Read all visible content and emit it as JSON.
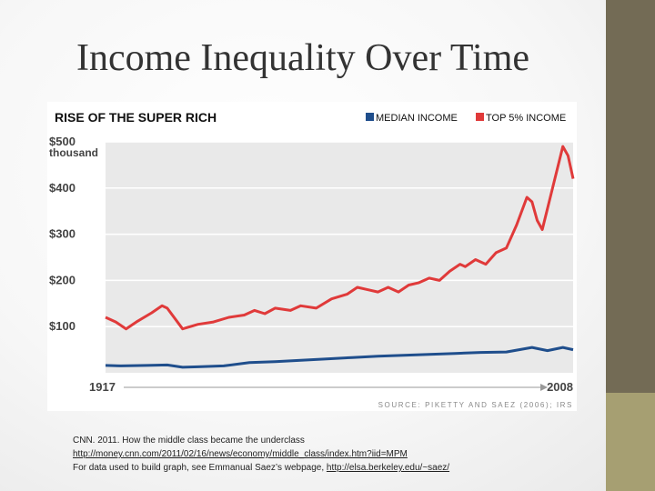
{
  "slide": {
    "title": "Income Inequality Over Time"
  },
  "chart_data": {
    "type": "line",
    "title": "RISE OF THE SUPER RICH",
    "y_unit_label": "thousand",
    "ylim": [
      0,
      500
    ],
    "y_ticks": [
      {
        "value": 500,
        "label": "$500"
      },
      {
        "value": 400,
        "label": "$400"
      },
      {
        "value": 300,
        "label": "$300"
      },
      {
        "value": 200,
        "label": "$200"
      },
      {
        "value": 100,
        "label": "$100"
      }
    ],
    "xlim": [
      1917,
      2008
    ],
    "x_labels": {
      "start": "1917",
      "end": "2008"
    },
    "legend_position": "top-right",
    "source": "SOURCE: PIKETTY AND SAEZ (2006); IRS",
    "grid": true,
    "series": [
      {
        "name": "MEDIAN INCOME",
        "color": "#1f4e8c",
        "x": [
          1917,
          1920,
          1925,
          1929,
          1932,
          1935,
          1940,
          1945,
          1950,
          1955,
          1960,
          1965,
          1970,
          1975,
          1980,
          1985,
          1990,
          1995,
          2000,
          2003,
          2006,
          2008
        ],
        "y": [
          16,
          15,
          16,
          17,
          12,
          13,
          15,
          22,
          24,
          27,
          30,
          33,
          36,
          38,
          40,
          42,
          44,
          45,
          55,
          48,
          55,
          50
        ]
      },
      {
        "name": "TOP 5% INCOME",
        "color": "#e03a3a",
        "x": [
          1917,
          1919,
          1921,
          1923,
          1926,
          1928,
          1929,
          1932,
          1935,
          1938,
          1941,
          1944,
          1946,
          1948,
          1950,
          1953,
          1955,
          1958,
          1961,
          1964,
          1966,
          1968,
          1970,
          1972,
          1974,
          1976,
          1978,
          1980,
          1982,
          1984,
          1986,
          1987,
          1989,
          1991,
          1993,
          1995,
          1997,
          1999,
          2000,
          2001,
          2002,
          2004,
          2006,
          2007,
          2008
        ],
        "y": [
          120,
          110,
          95,
          110,
          130,
          145,
          140,
          95,
          105,
          110,
          120,
          125,
          135,
          128,
          140,
          135,
          145,
          140,
          160,
          170,
          185,
          180,
          175,
          185,
          175,
          190,
          195,
          205,
          200,
          220,
          235,
          230,
          245,
          235,
          260,
          270,
          320,
          380,
          370,
          330,
          310,
          400,
          490,
          470,
          420
        ]
      }
    ]
  },
  "citation": {
    "line1": "CNN. 2011. How the middle class became the underclass",
    "link1": "http://money.cnn.com/2011/02/16/news/economy/middle_class/index.htm?iid=MPM",
    "line3_prefix": "For data used to build graph, see Emmanual Saez’s webpage,",
    "link2": "http://elsa.berkeley.edu/~saez/"
  }
}
